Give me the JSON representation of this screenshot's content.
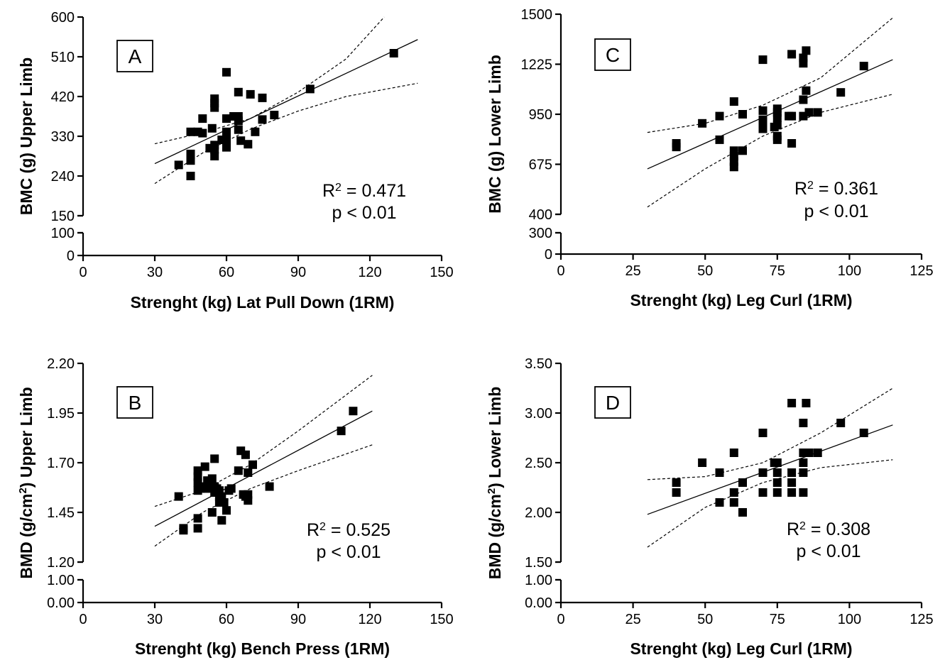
{
  "chart_data": [
    {
      "type": "scatter",
      "panel": "A",
      "xlabel": "Strenght (kg) Lat Pull Down (1RM)",
      "ylabel": "BMC (g) Upper Limb",
      "xlim": [
        0,
        150
      ],
      "xticks": [
        "0",
        "30",
        "60",
        "90",
        "120",
        "150"
      ],
      "ylim_upper": [
        150,
        600
      ],
      "yticks_upper": [
        "150",
        "240",
        "330",
        "420",
        "510",
        "600"
      ],
      "ylim_lower": [
        0,
        100
      ],
      "yticks_lower": [
        "0",
        "100"
      ],
      "r2_text": "= 0.471",
      "p_text": "p < 0.01",
      "fit": {
        "x0": 30,
        "y0": 268,
        "x1": 140,
        "y1": 549
      },
      "ci_upper": [
        [
          30,
          313
        ],
        [
          50,
          338
        ],
        [
          70,
          370
        ],
        [
          90,
          430
        ],
        [
          110,
          505
        ],
        [
          126,
          600
        ]
      ],
      "ci_lower": [
        [
          30,
          223
        ],
        [
          50,
          292
        ],
        [
          70,
          346
        ],
        [
          90,
          387
        ],
        [
          110,
          420
        ],
        [
          140,
          450
        ]
      ],
      "x": [
        40,
        45,
        45,
        45,
        45,
        48,
        50,
        50,
        53,
        54,
        55,
        55,
        55,
        55,
        55,
        55,
        58,
        60,
        60,
        60,
        60,
        60,
        60,
        63,
        65,
        65,
        65,
        65,
        66,
        69,
        70,
        72,
        75,
        75,
        80,
        95,
        130
      ],
      "y": [
        265,
        240,
        275,
        290,
        340,
        340,
        337,
        370,
        303,
        348,
        285,
        300,
        310,
        395,
        405,
        415,
        322,
        305,
        315,
        325,
        340,
        370,
        475,
        375,
        345,
        365,
        375,
        430,
        320,
        312,
        425,
        340,
        368,
        417,
        378,
        437,
        518
      ]
    },
    {
      "type": "scatter",
      "panel": "B",
      "xlabel": "Strenght (kg) Bench Press (1RM)",
      "ylabel": "BMD (g/cm²) Upper Limb",
      "xlim": [
        0,
        150
      ],
      "xticks": [
        "0",
        "30",
        "60",
        "90",
        "120",
        "150"
      ],
      "ylim_upper": [
        1.2,
        2.2
      ],
      "yticks_upper": [
        "1.20",
        "1.45",
        "1.70",
        "1.95",
        "2.20"
      ],
      "ylim_lower": [
        0,
        1
      ],
      "yticks_lower": [
        "0.00",
        "1.00"
      ],
      "r2_text": "= 0.525",
      "p_text": "p < 0.01",
      "fit": {
        "x0": 30,
        "y0": 1.38,
        "x1": 121,
        "y1": 1.96
      },
      "ci_upper": [
        [
          30,
          1.48
        ],
        [
          50,
          1.56
        ],
        [
          70,
          1.69
        ],
        [
          90,
          1.86
        ],
        [
          121,
          2.14
        ]
      ],
      "ci_lower": [
        [
          30,
          1.28
        ],
        [
          50,
          1.45
        ],
        [
          70,
          1.57
        ],
        [
          90,
          1.66
        ],
        [
          121,
          1.79
        ]
      ],
      "x": [
        40,
        42,
        42,
        48,
        48,
        48,
        48,
        48,
        48,
        49,
        50,
        51,
        52,
        52,
        54,
        54,
        55,
        55,
        55,
        56,
        57,
        57,
        57,
        58,
        58,
        59,
        60,
        61,
        62,
        65,
        66,
        67,
        68,
        68,
        69,
        69,
        69,
        71,
        78,
        108,
        113
      ],
      "y": [
        1.53,
        1.37,
        1.36,
        1.42,
        1.37,
        1.56,
        1.6,
        1.63,
        1.66,
        1.57,
        1.58,
        1.68,
        1.57,
        1.61,
        1.45,
        1.62,
        1.55,
        1.58,
        1.72,
        1.57,
        1.5,
        1.53,
        1.56,
        1.41,
        1.53,
        1.5,
        1.46,
        1.56,
        1.57,
        1.66,
        1.76,
        1.54,
        1.74,
        1.53,
        1.51,
        1.54,
        1.65,
        1.69,
        1.58,
        1.86,
        1.96
      ]
    },
    {
      "type": "scatter",
      "panel": "C",
      "xlabel": "Strenght (kg) Leg Curl (1RM)",
      "ylabel": "BMC (g) Lower Limb",
      "xlim": [
        0,
        125
      ],
      "xticks": [
        "0",
        "25",
        "50",
        "75",
        "100",
        "125"
      ],
      "ylim_upper": [
        400,
        1500
      ],
      "yticks_upper": [
        "400",
        "675",
        "950",
        "1225",
        "1500"
      ],
      "ylim_lower": [
        0,
        300
      ],
      "yticks_lower": [
        "0",
        "300"
      ],
      "r2_text": "= 0.361",
      "p_text": "p < 0.01",
      "fit": {
        "x0": 30,
        "y0": 650,
        "x1": 115,
        "y1": 1250
      },
      "ci_upper": [
        [
          30,
          850
        ],
        [
          50,
          900
        ],
        [
          70,
          1000
        ],
        [
          90,
          1150
        ],
        [
          115,
          1480
        ]
      ],
      "ci_lower": [
        [
          30,
          440
        ],
        [
          50,
          650
        ],
        [
          70,
          830
        ],
        [
          90,
          960
        ],
        [
          115,
          1060
        ]
      ],
      "x": [
        40,
        40,
        49,
        55,
        55,
        60,
        60,
        60,
        60,
        60,
        63,
        63,
        70,
        70,
        70,
        70,
        70,
        74,
        75,
        75,
        75,
        75,
        75,
        75,
        79,
        80,
        80,
        80,
        84,
        84,
        84,
        84,
        85,
        85,
        86,
        89,
        97,
        105
      ],
      "y": [
        770,
        790,
        900,
        810,
        940,
        660,
        690,
        720,
        750,
        1020,
        750,
        950,
        870,
        890,
        920,
        970,
        1250,
        880,
        810,
        830,
        890,
        930,
        960,
        980,
        940,
        790,
        1280,
        940,
        940,
        1030,
        1230,
        1260,
        1080,
        1300,
        960,
        960,
        1070,
        1215
      ]
    },
    {
      "type": "scatter",
      "panel": "D",
      "xlabel": "Strenght (kg) Leg Curl (1RM)",
      "ylabel": "BMD (g/cm²) Lower Limb",
      "xlim": [
        0,
        125
      ],
      "xticks": [
        "0",
        "25",
        "50",
        "75",
        "100",
        "125"
      ],
      "ylim_upper": [
        1.5,
        3.5
      ],
      "yticks_upper": [
        "1.50",
        "2.00",
        "2.50",
        "3.00",
        "3.50"
      ],
      "ylim_lower": [
        0,
        1
      ],
      "yticks_lower": [
        "0.00",
        "1.00"
      ],
      "r2_text": "= 0.308",
      "p_text": "p < 0.01",
      "fit": {
        "x0": 30,
        "y0": 1.98,
        "x1": 115,
        "y1": 2.88
      },
      "ci_upper": [
        [
          30,
          2.33
        ],
        [
          50,
          2.36
        ],
        [
          70,
          2.5
        ],
        [
          90,
          2.8
        ],
        [
          115,
          3.25
        ]
      ],
      "ci_lower": [
        [
          30,
          1.65
        ],
        [
          50,
          2.05
        ],
        [
          70,
          2.3
        ],
        [
          90,
          2.45
        ],
        [
          115,
          2.53
        ]
      ],
      "x": [
        40,
        40,
        49,
        55,
        55,
        60,
        60,
        60,
        63,
        63,
        70,
        70,
        70,
        74,
        75,
        75,
        75,
        75,
        80,
        80,
        80,
        80,
        84,
        84,
        84,
        84,
        84,
        85,
        86,
        89,
        97,
        105
      ],
      "y": [
        2.2,
        2.3,
        2.5,
        2.1,
        2.4,
        2.1,
        2.2,
        2.6,
        2.0,
        2.3,
        2.2,
        2.4,
        2.8,
        2.5,
        2.2,
        2.3,
        2.4,
        2.5,
        2.2,
        2.3,
        2.4,
        3.1,
        2.2,
        2.4,
        2.5,
        2.6,
        2.9,
        3.1,
        2.6,
        2.6,
        2.9,
        2.8
      ]
    }
  ]
}
